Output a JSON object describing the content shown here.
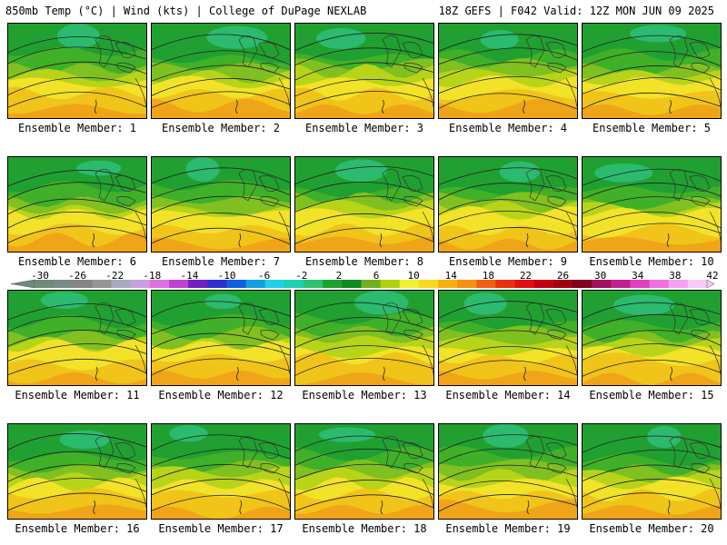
{
  "header": {
    "left": "850mb Temp (°C) | Wind (kts) | College of DuPage NEXLAB",
    "right": "18Z GEFS | F042 Valid: 12Z MON JUN 09 2025"
  },
  "panels": [
    {
      "label": "Ensemble Member: 1",
      "member": 1
    },
    {
      "label": "Ensemble Member: 2",
      "member": 2
    },
    {
      "label": "Ensemble Member: 3",
      "member": 3
    },
    {
      "label": "Ensemble Member: 4",
      "member": 4
    },
    {
      "label": "Ensemble Member: 5",
      "member": 5
    },
    {
      "label": "Ensemble Member: 6",
      "member": 6
    },
    {
      "label": "Ensemble Member: 7",
      "member": 7
    },
    {
      "label": "Ensemble Member: 8",
      "member": 8
    },
    {
      "label": "Ensemble Member: 9",
      "member": 9
    },
    {
      "label": "Ensemble Member: 10",
      "member": 10
    },
    {
      "label": "Ensemble Member: 11",
      "member": 11
    },
    {
      "label": "Ensemble Member: 12",
      "member": 12
    },
    {
      "label": "Ensemble Member: 13",
      "member": 13
    },
    {
      "label": "Ensemble Member: 14",
      "member": 14
    },
    {
      "label": "Ensemble Member: 15",
      "member": 15
    },
    {
      "label": "Ensemble Member: 16",
      "member": 16
    },
    {
      "label": "Ensemble Member: 17",
      "member": 17
    },
    {
      "label": "Ensemble Member: 18",
      "member": 18
    },
    {
      "label": "Ensemble Member: 19",
      "member": 19
    },
    {
      "label": "Ensemble Member: 20",
      "member": 20
    }
  ],
  "colorbar": {
    "tick_labels": [
      "-30",
      "-26",
      "-22",
      "-18",
      "-14",
      "-10",
      "-6",
      "-2",
      "2",
      "6",
      "10",
      "14",
      "18",
      "22",
      "26",
      "30",
      "34",
      "38",
      "42"
    ],
    "colors": [
      "#6e8a7a",
      "#7a8a8a",
      "#858585",
      "#959595",
      "#a8a8c0",
      "#c8a0e0",
      "#e070e0",
      "#c040d0",
      "#7020c0",
      "#3030d0",
      "#1060e0",
      "#10a0e0",
      "#20d0e8",
      "#20d0b0",
      "#30c070",
      "#20a030",
      "#108a20",
      "#70b020",
      "#b0d010",
      "#f0f030",
      "#f8d820",
      "#f8b010",
      "#f89010",
      "#f06010",
      "#e83010",
      "#e01010",
      "#c00010",
      "#a00010",
      "#800020",
      "#a01060",
      "#c02090",
      "#e040c0",
      "#f070e0",
      "#f8a0f0",
      "#f8c8f8"
    ]
  },
  "map_palette": {
    "deep_green": "#20a030",
    "mid_green": "#40b028",
    "light_green": "#80c020",
    "yellow_green": "#b8d418",
    "yellow": "#f2e228",
    "gold": "#f0c418",
    "orange": "#f0a418",
    "teal": "#30c080"
  }
}
